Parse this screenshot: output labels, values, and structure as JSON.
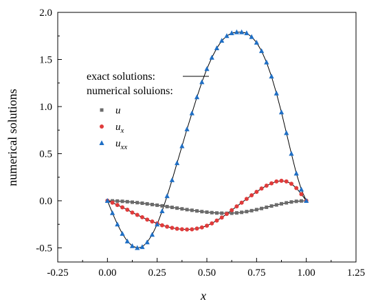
{
  "chart_data": {
    "type": "line",
    "title": "",
    "xlabel": "x",
    "ylabel": "numerical solutions",
    "xlim": [
      -0.25,
      1.25
    ],
    "ylim": [
      -0.65,
      2.0
    ],
    "x_ticks": [
      -0.25,
      0.0,
      0.25,
      0.5,
      0.75,
      1.0,
      1.25
    ],
    "x_tick_labels": [
      "-0.25",
      "0.00",
      "0.25",
      "0.50",
      "0.75",
      "1.00",
      "1.25"
    ],
    "y_ticks": [
      -0.5,
      0.0,
      0.5,
      1.0,
      1.5,
      2.0
    ],
    "y_tick_labels": [
      "-0.5",
      "0.0",
      "0.5",
      "1.0",
      "1.5",
      "2.0"
    ],
    "grid": false,
    "legend_position": "left-upper",
    "legend": {
      "exact_label": "exact solutions:",
      "numerical_label": "numerical soluions:"
    },
    "exact_color": "#000000",
    "series": [
      {
        "name": "u",
        "symbol_base": "u",
        "symbol_sub": "",
        "marker": "square",
        "color": "#6b6b6b",
        "x": [
          0.0,
          0.025,
          0.05,
          0.075,
          0.1,
          0.125,
          0.15,
          0.175,
          0.2,
          0.225,
          0.25,
          0.275,
          0.3,
          0.325,
          0.35,
          0.375,
          0.4,
          0.425,
          0.45,
          0.475,
          0.5,
          0.525,
          0.55,
          0.575,
          0.6,
          0.625,
          0.65,
          0.675,
          0.7,
          0.725,
          0.75,
          0.775,
          0.8,
          0.825,
          0.85,
          0.875,
          0.9,
          0.925,
          0.95,
          0.975,
          1.0
        ],
        "values": [
          0.0,
          -0.001,
          -0.003,
          -0.006,
          -0.01,
          -0.015,
          -0.02,
          -0.026,
          -0.033,
          -0.04,
          -0.047,
          -0.054,
          -0.062,
          -0.07,
          -0.078,
          -0.086,
          -0.094,
          -0.101,
          -0.108,
          -0.115,
          -0.121,
          -0.126,
          -0.13,
          -0.132,
          -0.133,
          -0.132,
          -0.129,
          -0.123,
          -0.115,
          -0.105,
          -0.094,
          -0.082,
          -0.069,
          -0.056,
          -0.044,
          -0.032,
          -0.022,
          -0.013,
          -0.006,
          -0.002,
          0.0
        ]
      },
      {
        "name": "u_x",
        "symbol_base": "u",
        "symbol_sub": "x",
        "marker": "circle",
        "color": "#e03c3c",
        "x": [
          0.0,
          0.025,
          0.05,
          0.075,
          0.1,
          0.125,
          0.15,
          0.175,
          0.2,
          0.225,
          0.25,
          0.275,
          0.3,
          0.325,
          0.35,
          0.375,
          0.4,
          0.425,
          0.45,
          0.475,
          0.5,
          0.525,
          0.55,
          0.575,
          0.6,
          0.625,
          0.65,
          0.675,
          0.7,
          0.725,
          0.75,
          0.775,
          0.8,
          0.825,
          0.85,
          0.875,
          0.9,
          0.925,
          0.95,
          0.975,
          1.0
        ],
        "values": [
          0.0,
          -0.02,
          -0.045,
          -0.07,
          -0.095,
          -0.125,
          -0.15,
          -0.175,
          -0.2,
          -0.22,
          -0.24,
          -0.26,
          -0.275,
          -0.288,
          -0.297,
          -0.302,
          -0.305,
          -0.303,
          -0.295,
          -0.283,
          -0.265,
          -0.24,
          -0.21,
          -0.178,
          -0.14,
          -0.1,
          -0.06,
          -0.02,
          0.02,
          0.058,
          0.095,
          0.13,
          0.16,
          0.185,
          0.205,
          0.212,
          0.205,
          0.18,
          0.135,
          0.07,
          0.0
        ]
      },
      {
        "name": "u_xx",
        "symbol_base": "u",
        "symbol_sub": "xx",
        "marker": "triangle",
        "color": "#1f6fc5",
        "x": [
          0.0,
          0.025,
          0.05,
          0.075,
          0.1,
          0.125,
          0.15,
          0.175,
          0.2,
          0.225,
          0.25,
          0.275,
          0.3,
          0.325,
          0.35,
          0.375,
          0.4,
          0.425,
          0.45,
          0.475,
          0.5,
          0.525,
          0.55,
          0.575,
          0.6,
          0.625,
          0.65,
          0.675,
          0.7,
          0.725,
          0.75,
          0.775,
          0.8,
          0.825,
          0.85,
          0.875,
          0.9,
          0.925,
          0.95,
          0.975,
          1.0
        ],
        "values": [
          0.0,
          -0.13,
          -0.25,
          -0.35,
          -0.43,
          -0.48,
          -0.5,
          -0.49,
          -0.44,
          -0.36,
          -0.25,
          -0.11,
          0.05,
          0.22,
          0.4,
          0.58,
          0.76,
          0.93,
          1.1,
          1.26,
          1.4,
          1.52,
          1.62,
          1.7,
          1.75,
          1.78,
          1.79,
          1.79,
          1.78,
          1.74,
          1.68,
          1.59,
          1.47,
          1.32,
          1.14,
          0.94,
          0.72,
          0.5,
          0.29,
          0.12,
          0.0
        ]
      }
    ]
  }
}
